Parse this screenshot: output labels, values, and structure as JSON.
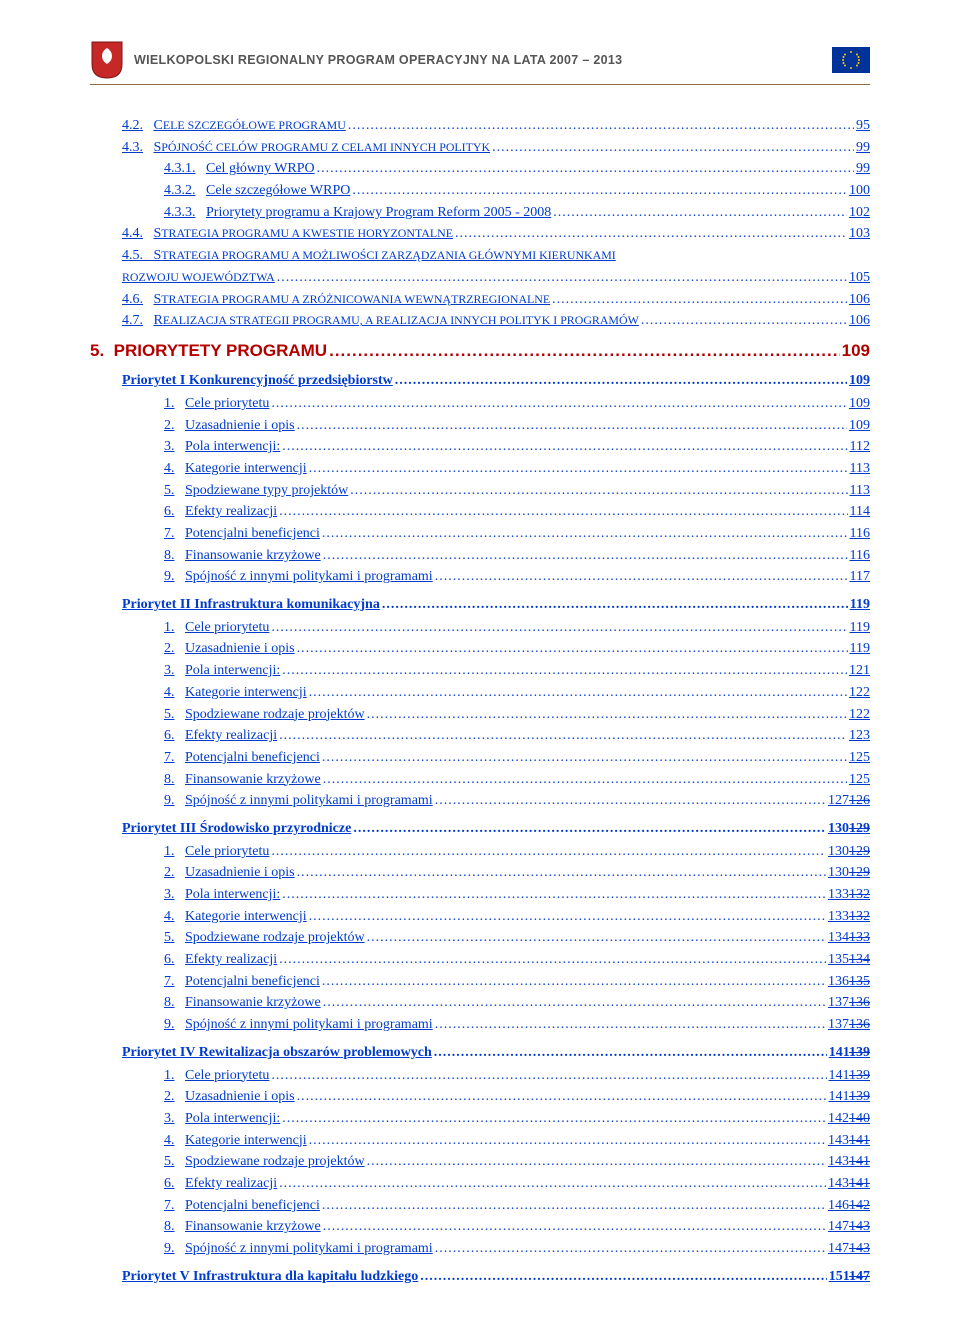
{
  "header": {
    "title": "WIELKOPOLSKI REGIONALNY PROGRAM OPERACYJNY NA LATA 2007 – 2013",
    "crest_color": "#c62828",
    "eu_blue": "#003399",
    "eu_gold": "#ffcc00"
  },
  "colors": {
    "link": "#003bcc",
    "chapter": "#b30000",
    "header_line": "#8a6d3b",
    "header_text": "#555555"
  },
  "toc": {
    "sec4": [
      {
        "num": "4.2.",
        "label": "CELE SZCZEGÓŁOWE PROGRAMU",
        "page": "95",
        "indent": 1,
        "smallcaps": true
      },
      {
        "num": "4.3.",
        "label": "SPÓJNOŚĆ CELÓW PROGRAMU Z CELAMI INNYCH POLITYK",
        "page": "99",
        "indent": 1,
        "smallcaps": true
      },
      {
        "num": "4.3.1.",
        "label": "Cel główny WRPO",
        "page": "99",
        "indent": 2
      },
      {
        "num": "4.3.2.",
        "label": "Cele szczegółowe WRPO",
        "page": "100",
        "indent": 2
      },
      {
        "num": "4.3.3.",
        "label": "Priorytety programu a Krajowy Program Reform 2005 - 2008",
        "page": "102",
        "indent": 2
      },
      {
        "num": "4.4.",
        "label": "STRATEGIA PROGRAMU A KWESTIE HORYZONTALNE",
        "page": "103",
        "indent": 1,
        "smallcaps": true
      },
      {
        "num": "4.5.",
        "label": "STRATEGIA PROGRAMU A MOŻLIWOŚCI ZARZĄDZANIA GŁÓWNYMI KIERUNKAMI ROZWOJU WOJEWÓDZTWA",
        "page": "105",
        "indent": 1,
        "smallcaps": true,
        "wrap": true
      },
      {
        "num": "4.6.",
        "label": "STRATEGIA PROGRAMU A ZRÓŻNICOWANIA WEWNĄTRZREGIONALNE",
        "page": "106",
        "indent": 1,
        "smallcaps": true
      },
      {
        "num": "4.7.",
        "label": "REALIZACJA STRATEGII PROGRAMU, A REALIZACJA INNYCH POLITYK I PROGRAMÓW",
        "page": "106",
        "indent": 1,
        "smallcaps": true
      }
    ],
    "chapter5": {
      "num": "5.",
      "label": "PRIORYTETY PROGRAMU",
      "page": "109"
    },
    "priorities": [
      {
        "title": "Priorytet I   Konkurencyjność przedsiębiorstw",
        "page": "109",
        "items": [
          {
            "num": "1.",
            "label": "Cele priorytetu",
            "page": "109"
          },
          {
            "num": "2.",
            "label": "Uzasadnienie i opis",
            "page": "109"
          },
          {
            "num": "3.",
            "label": "Pola interwencji:",
            "page": "112"
          },
          {
            "num": "4.",
            "label": "Kategorie interwencji",
            "page": "113"
          },
          {
            "num": "5.",
            "label": "Spodziewane typy projektów",
            "page": "113"
          },
          {
            "num": "6.",
            "label": "Efekty realizacji",
            "page": "114"
          },
          {
            "num": "7.",
            "label": "Potencjalni beneficjenci",
            "page": "116"
          },
          {
            "num": "8.",
            "label": "Finansowanie krzyżowe",
            "page": "116"
          },
          {
            "num": "9.",
            "label": "Spójność z innymi politykami i programami",
            "page": "117"
          }
        ]
      },
      {
        "title": "Priorytet II  Infrastruktura komunikacyjna",
        "page": "119",
        "items": [
          {
            "num": "1.",
            "label": "Cele priorytetu",
            "page": "119"
          },
          {
            "num": "2.",
            "label": "Uzasadnienie i opis",
            "page": "119"
          },
          {
            "num": "3.",
            "label": "Pola interwencji:",
            "page": "121"
          },
          {
            "num": "4.",
            "label": "Kategorie interwencji",
            "page": "122"
          },
          {
            "num": "5.",
            "label": "Spodziewane rodzaje projektów",
            "page": "122"
          },
          {
            "num": "6.",
            "label": "Efekty realizacji",
            "page": "123"
          },
          {
            "num": "7.",
            "label": "Potencjalni beneficjenci",
            "page": "125"
          },
          {
            "num": "8.",
            "label": "Finansowanie krzyżowe",
            "page": "125"
          },
          {
            "num": "9.",
            "label": "Spójność z innymi politykami i programami",
            "page": "127",
            "page_old": "126"
          }
        ]
      },
      {
        "title": "Priorytet III Środowisko przyrodnicze",
        "page": "130",
        "page_old": "129",
        "items": [
          {
            "num": "1.",
            "label": "Cele priorytetu",
            "page": "130",
            "page_old": "129"
          },
          {
            "num": "2.",
            "label": "Uzasadnienie i opis",
            "page": "130",
            "page_old": "129"
          },
          {
            "num": "3.",
            "label": "Pola interwencji:",
            "page": "133",
            "page_old": "132"
          },
          {
            "num": "4.",
            "label": "Kategorie interwencji",
            "page": "133",
            "page_old": "132"
          },
          {
            "num": "5.",
            "label": "Spodziewane rodzaje projektów",
            "page": "134",
            "page_old": "133"
          },
          {
            "num": "6.",
            "label": "Efekty realizacji",
            "page": "135",
            "page_old": "134"
          },
          {
            "num": "7.",
            "label": "Potencjalni beneficjenci",
            "page": "136",
            "page_old": "135"
          },
          {
            "num": "8.",
            "label": "Finansowanie krzyżowe",
            "page": "137",
            "page_old": "136"
          },
          {
            "num": "9.",
            "label": "Spójność z innymi politykami i programami",
            "page": "137",
            "page_old": "136"
          }
        ]
      },
      {
        "title": "Priorytet IV Rewitalizacja obszarów problemowych",
        "page": "141",
        "page_old": "139",
        "items": [
          {
            "num": "1.",
            "label": "Cele priorytetu",
            "page": "141",
            "page_old": "139"
          },
          {
            "num": "2.",
            "label": "Uzasadnienie i opis",
            "page": "141",
            "page_old": "139"
          },
          {
            "num": "3.",
            "label": "Pola interwencji:",
            "page": "142",
            "page_old": "140"
          },
          {
            "num": "4.",
            "label": "Kategorie interwencji",
            "page": "143",
            "page_old": "141"
          },
          {
            "num": "5.",
            "label": "Spodziewane rodzaje projektów",
            "page": "143",
            "page_old": "141"
          },
          {
            "num": "6.",
            "label": "Efekty realizacji",
            "page": "143",
            "page_old": "141"
          },
          {
            "num": "7.",
            "label": "Potencjalni beneficjenci",
            "page": "146",
            "page_old": "142"
          },
          {
            "num": "8.",
            "label": "Finansowanie krzyżowe",
            "page": "147",
            "page_old": "143"
          },
          {
            "num": "9.",
            "label": "Spójność z innymi politykami i programami",
            "page": "147",
            "page_old": "143"
          }
        ]
      },
      {
        "title": "Priorytet V  Infrastruktura dla kapitału ludzkiego",
        "page": "151",
        "page_old": "147",
        "items": []
      }
    ]
  }
}
